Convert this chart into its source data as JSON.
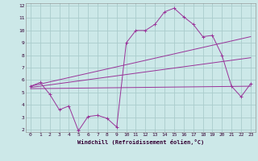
{
  "xlabel": "Windchill (Refroidissement éolien,°C)",
  "bg_color": "#cce8e8",
  "grid_color": "#aacccc",
  "line_color": "#993399",
  "xlim": [
    -0.5,
    23.5
  ],
  "ylim": [
    1.8,
    12.2
  ],
  "xticks": [
    0,
    1,
    2,
    3,
    4,
    5,
    6,
    7,
    8,
    9,
    10,
    11,
    12,
    13,
    14,
    15,
    16,
    17,
    18,
    19,
    20,
    21,
    22,
    23
  ],
  "yticks": [
    2,
    3,
    4,
    5,
    6,
    7,
    8,
    9,
    10,
    11,
    12
  ],
  "series1_x": [
    0,
    1,
    2,
    3,
    4,
    5,
    6,
    7,
    8,
    9,
    10,
    11,
    12,
    13,
    14,
    15,
    16,
    17,
    18,
    19,
    20,
    21,
    22,
    23
  ],
  "series1_y": [
    5.5,
    5.8,
    4.85,
    3.6,
    3.9,
    1.9,
    3.05,
    3.15,
    2.9,
    2.2,
    9.0,
    10.0,
    10.0,
    10.5,
    11.5,
    11.8,
    11.1,
    10.5,
    9.5,
    9.6,
    8.0,
    5.5,
    4.65,
    5.7
  ],
  "line2_x": [
    0,
    23
  ],
  "line2_y": [
    5.5,
    9.5
  ],
  "line3_x": [
    0,
    23
  ],
  "line3_y": [
    5.4,
    7.8
  ],
  "line4_x": [
    0,
    23
  ],
  "line4_y": [
    5.3,
    5.5
  ]
}
